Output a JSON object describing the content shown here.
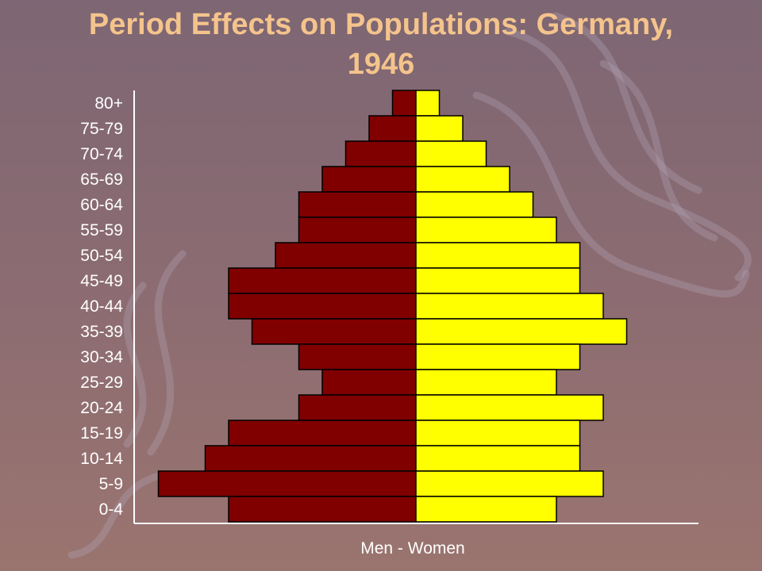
{
  "slide": {
    "title_line1": "Period Effects on Populations: Germany,",
    "title_line2": "1946"
  },
  "colors": {
    "men": "#800000",
    "women": "#ffff00",
    "title": "#f4c48c",
    "axis": "#ffffff"
  },
  "chart_data": {
    "type": "bar",
    "orientation": "horizontal",
    "layout": "population-pyramid",
    "title": "Period Effects on Populations: Germany, 1946",
    "xlabel": "Men - Women",
    "ylabel": "",
    "categories": [
      "80+",
      "75-79",
      "70-74",
      "65-69",
      "60-64",
      "55-59",
      "50-54",
      "45-49",
      "40-44",
      "35-39",
      "30-34",
      "25-29",
      "20-24",
      "15-19",
      "10-14",
      "5-9",
      "0-4"
    ],
    "series": [
      {
        "name": "Men",
        "values": [
          1,
          2,
          3,
          4,
          5,
          5,
          6,
          8,
          8,
          7,
          5,
          4,
          5,
          8,
          9,
          11,
          8
        ]
      },
      {
        "name": "Women",
        "values": [
          1,
          2,
          3,
          4,
          5,
          6,
          7,
          7,
          8,
          9,
          7,
          6,
          8,
          7,
          7,
          8,
          6
        ]
      }
    ],
    "grid": false,
    "legend": "none"
  }
}
